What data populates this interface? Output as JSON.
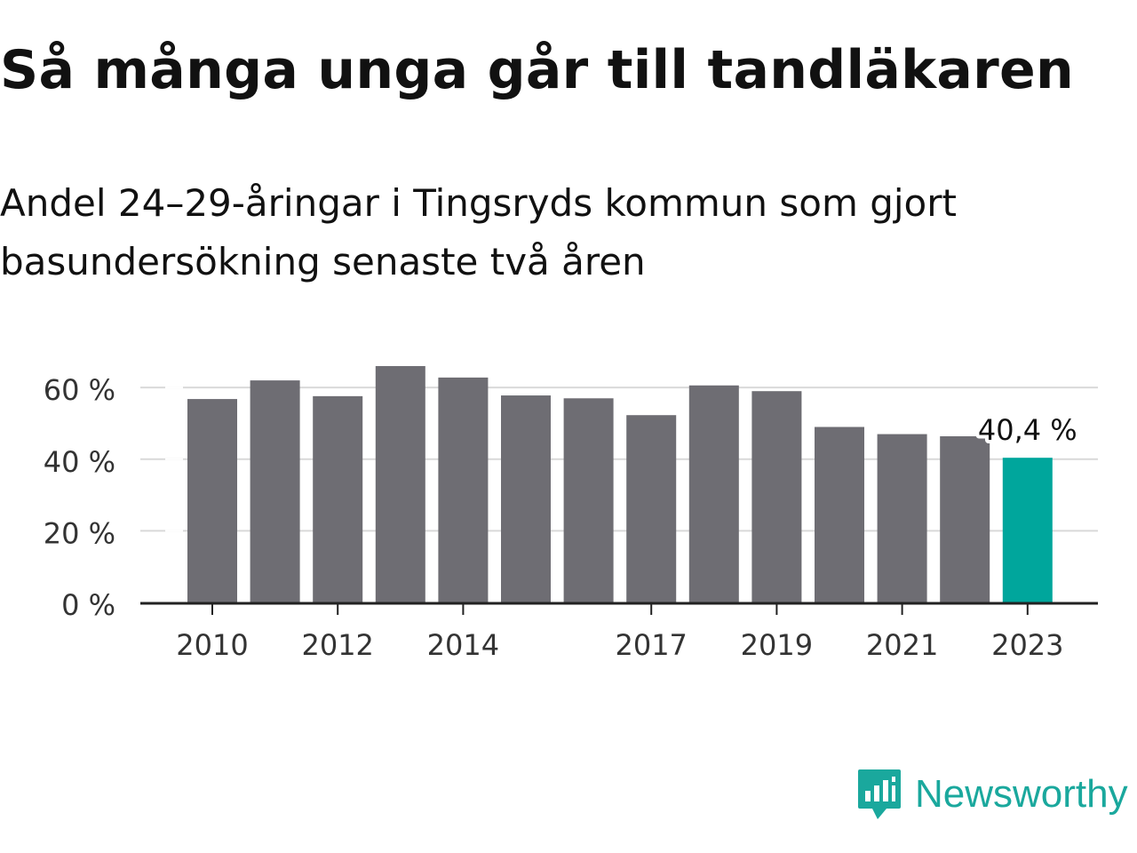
{
  "header": {
    "title": "Så många unga går till tandläkaren",
    "subtitle": "Andel 24–29-åringar i Tingsryds kommun som gjort basundersökning senaste två åren"
  },
  "brand": {
    "name": "Newsworthy",
    "icon": "newsworthy-logo-icon",
    "color": "#1aa89d"
  },
  "chart_data": {
    "type": "bar",
    "title": "Så många unga går till tandläkaren",
    "subtitle": "Andel 24–29-åringar i Tingsryds kommun som gjort basundersökning senaste två åren",
    "categories": [
      "2010",
      "2011",
      "2012",
      "2013",
      "2014",
      "2015",
      "2016",
      "2017",
      "2018",
      "2019",
      "2020",
      "2021",
      "2022",
      "2023"
    ],
    "values": [
      56.8,
      62.0,
      57.6,
      66.0,
      62.8,
      57.8,
      57.0,
      52.3,
      60.6,
      59.0,
      49.0,
      47.0,
      46.4,
      40.4
    ],
    "x_tick_labels": [
      "2010",
      "2012",
      "2014",
      "2017",
      "2019",
      "2021",
      "2023"
    ],
    "y_ticks": [
      0,
      20,
      40,
      60
    ],
    "y_tick_labels": [
      "0 %",
      "20 %",
      "40 %",
      "60 %"
    ],
    "ylim": [
      0,
      66
    ],
    "grid": true,
    "highlight": {
      "category": "2023",
      "label": "40,4 %"
    },
    "colors": {
      "bar": "#6e6d73",
      "highlight": "#00a69c",
      "grid": "#d9d9d9",
      "axis": "#222222"
    },
    "xlabel": "",
    "ylabel": ""
  }
}
